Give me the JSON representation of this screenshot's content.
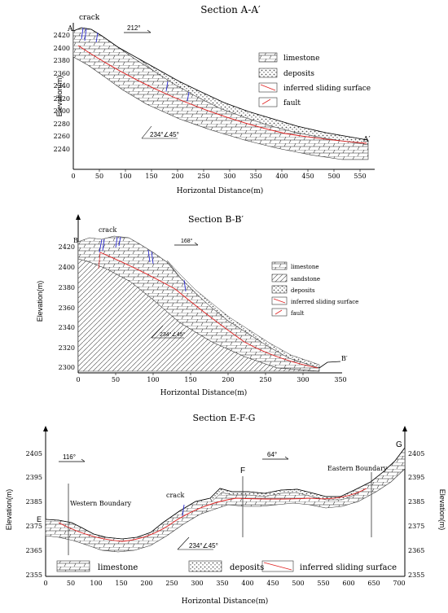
{
  "panel_a": {
    "title": "Section A-A′",
    "crack": "crack",
    "point_start": "A",
    "point_end": "A′",
    "dir": "212°",
    "dip": "234°∠45°",
    "ylabel": "Elevation(m)",
    "xlabel": "Horizontal Distance(m)",
    "yticks": [
      "2420",
      "2400",
      "2380",
      "2360",
      "2340",
      "2320",
      "2300",
      "2280",
      "2260",
      "2240"
    ],
    "xticks": [
      "0",
      "50",
      "100",
      "150",
      "200",
      "250",
      "300",
      "350",
      "400",
      "450",
      "500",
      "550"
    ],
    "legend": [
      "limestone",
      "deposits",
      "inferred sliding surface",
      "fault"
    ]
  },
  "panel_b": {
    "title": "Section B-B′",
    "crack": "crack",
    "point_start": "B",
    "point_end": "B′",
    "dir": "168°",
    "dip": "234°∠45°",
    "ylabel": "Elevation(m)",
    "xlabel": "Horizontal Distance(m)",
    "yticks": [
      "2420",
      "2400",
      "2380",
      "2360",
      "2340",
      "2320",
      "2300"
    ],
    "xticks": [
      "0",
      "50",
      "100",
      "150",
      "200",
      "250",
      "300",
      "350"
    ],
    "legend": [
      "limestone",
      "sandstone",
      "deposits",
      "inferred sliding surface",
      "fault"
    ]
  },
  "panel_c": {
    "title": "Section E-F-G",
    "point_e": "E",
    "point_f": "F",
    "point_g": "G",
    "dir_left": "116°",
    "dir_right": "64°",
    "crack": "crack",
    "west": "Western Boundary",
    "east": "Eastern Boundary",
    "dip": "234°∠45°",
    "ylabel": "Elevation(m)",
    "xlabel": "Horizontal Distance(m)",
    "yticks": [
      "2405",
      "2395",
      "2385",
      "2375",
      "2365",
      "2355"
    ],
    "xticks": [
      "0",
      "50",
      "100",
      "150",
      "200",
      "250",
      "300",
      "350",
      "400",
      "450",
      "500",
      "550",
      "600",
      "650",
      "700"
    ],
    "legend": [
      "limestone",
      "deposits",
      "inferred sliding surface"
    ]
  }
}
